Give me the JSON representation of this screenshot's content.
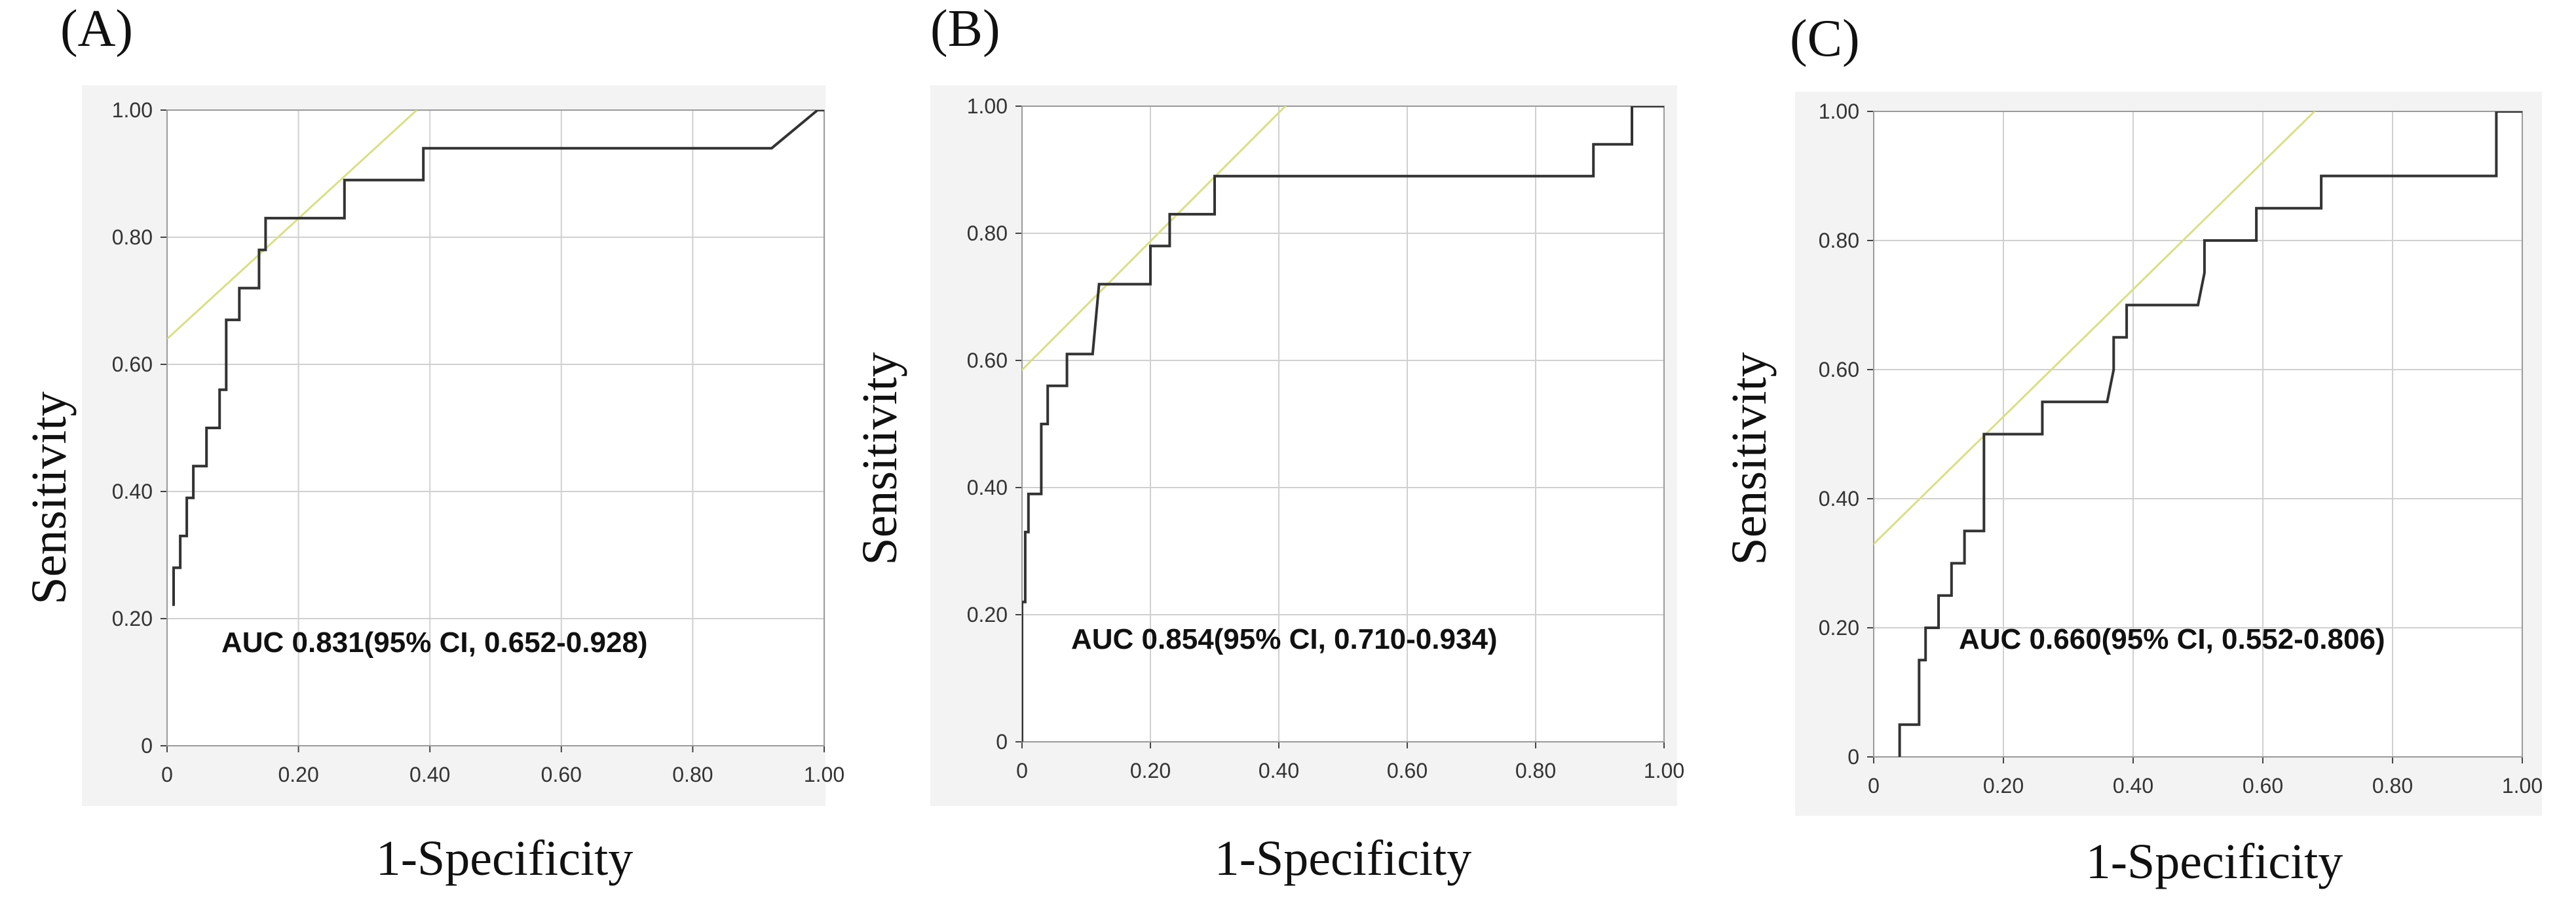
{
  "chart_data": [
    {
      "type": "line",
      "panel_label": "(A)",
      "xlabel": "1-Specificity",
      "ylabel": "Sensitivity",
      "xlim": [
        0,
        1
      ],
      "ylim": [
        0,
        1
      ],
      "x_ticks": [
        "0",
        "0.20",
        "0.40",
        "0.60",
        "0.80",
        "1.00"
      ],
      "y_ticks": [
        "0",
        "0.20",
        "0.40",
        "0.60",
        "0.80",
        "1.00"
      ],
      "grid": true,
      "annotation": "AUC 0.831(95% CI, 0.652-0.928)",
      "series": [
        {
          "name": "ROC",
          "color": "#333333",
          "x": [
            0.01,
            0.01,
            0.02,
            0.02,
            0.03,
            0.03,
            0.04,
            0.04,
            0.06,
            0.06,
            0.08,
            0.08,
            0.09,
            0.09,
            0.11,
            0.11,
            0.14,
            0.14,
            0.15,
            0.15,
            0.19,
            0.19,
            0.27,
            0.27,
            0.39,
            0.39,
            0.92,
            0.99,
            1.0
          ],
          "y": [
            0.22,
            0.28,
            0.28,
            0.33,
            0.33,
            0.39,
            0.39,
            0.44,
            0.44,
            0.5,
            0.5,
            0.56,
            0.56,
            0.67,
            0.67,
            0.72,
            0.72,
            0.78,
            0.78,
            0.83,
            0.83,
            0.83,
            0.83,
            0.89,
            0.89,
            0.94,
            0.94,
            1.0,
            1.0
          ]
        },
        {
          "name": "tangent",
          "color": "#d9df86",
          "x": [
            0,
            0.38
          ],
          "y": [
            0.64,
            1.0
          ]
        }
      ]
    },
    {
      "type": "line",
      "panel_label": "(B)",
      "xlabel": "1-Specificity",
      "ylabel": "Sensitivity",
      "xlim": [
        0,
        1
      ],
      "ylim": [
        0,
        1
      ],
      "x_ticks": [
        "0",
        "0.20",
        "0.40",
        "0.60",
        "0.80",
        "1.00"
      ],
      "y_ticks": [
        "0",
        "0.20",
        "0.40",
        "0.60",
        "0.80",
        "1.00"
      ],
      "grid": true,
      "annotation": "AUC 0.854(95% CI, 0.710-0.934)",
      "series": [
        {
          "name": "ROC",
          "color": "#333333",
          "x": [
            0.0,
            0.0,
            0.005,
            0.005,
            0.01,
            0.01,
            0.03,
            0.03,
            0.04,
            0.04,
            0.07,
            0.07,
            0.11,
            0.12,
            0.2,
            0.2,
            0.23,
            0.23,
            0.3,
            0.3,
            0.89,
            0.89,
            0.95,
            0.95,
            1.0
          ],
          "y": [
            0.0,
            0.22,
            0.22,
            0.33,
            0.33,
            0.39,
            0.39,
            0.5,
            0.5,
            0.56,
            0.56,
            0.61,
            0.61,
            0.72,
            0.72,
            0.78,
            0.78,
            0.83,
            0.83,
            0.89,
            0.89,
            0.94,
            0.94,
            1.0,
            1.0
          ]
        },
        {
          "name": "tangent",
          "color": "#d9df86",
          "x": [
            -0.005,
            0.42
          ],
          "y": [
            0.58,
            1.01
          ]
        }
      ]
    },
    {
      "type": "line",
      "panel_label": "(C)",
      "xlabel": "1-Specificity",
      "ylabel": "Sensitivity",
      "xlim": [
        0,
        1
      ],
      "ylim": [
        0,
        1
      ],
      "x_ticks": [
        "0",
        "0.20",
        "0.40",
        "0.60",
        "0.80",
        "1.00"
      ],
      "y_ticks": [
        "0",
        "0.20",
        "0.40",
        "0.60",
        "0.80",
        "1.00"
      ],
      "grid": true,
      "annotation": "AUC 0.660(95% CI, 0.552-0.806)",
      "series": [
        {
          "name": "ROC",
          "color": "#333333",
          "x": [
            0.04,
            0.04,
            0.07,
            0.07,
            0.08,
            0.08,
            0.1,
            0.1,
            0.12,
            0.12,
            0.14,
            0.14,
            0.17,
            0.17,
            0.26,
            0.26,
            0.36,
            0.37,
            0.37,
            0.39,
            0.39,
            0.5,
            0.51,
            0.51,
            0.59,
            0.59,
            0.69,
            0.69,
            0.96,
            0.96,
            1.0
          ],
          "y": [
            0.0,
            0.05,
            0.05,
            0.15,
            0.15,
            0.2,
            0.2,
            0.25,
            0.25,
            0.3,
            0.3,
            0.35,
            0.35,
            0.5,
            0.5,
            0.55,
            0.55,
            0.6,
            0.65,
            0.65,
            0.7,
            0.7,
            0.75,
            0.8,
            0.8,
            0.85,
            0.85,
            0.9,
            0.9,
            1.0,
            1.0
          ]
        },
        {
          "name": "tangent",
          "color": "#d9df86",
          "x": [
            -0.01,
            0.7
          ],
          "y": [
            0.32,
            1.02
          ]
        }
      ]
    }
  ]
}
